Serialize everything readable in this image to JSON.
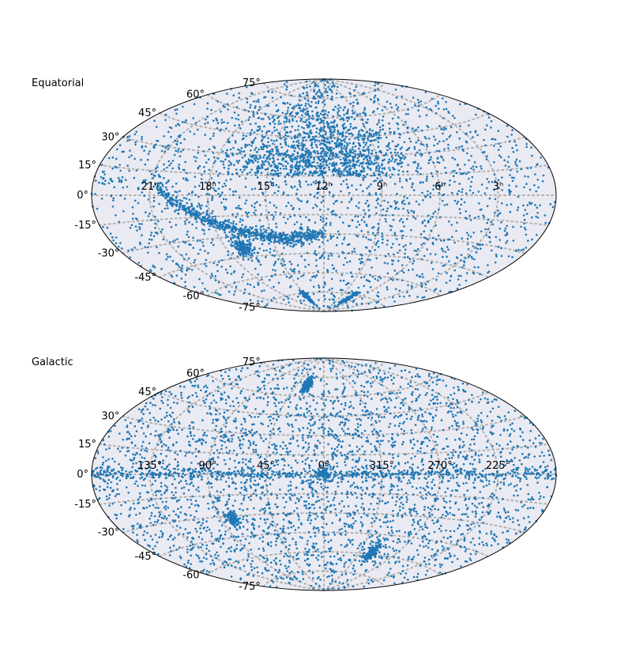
{
  "chart_data": [
    {
      "type": "scatter",
      "projection": "aitoff",
      "frame": "Equatorial",
      "grid": true,
      "ylim": [
        -90,
        90
      ],
      "lat_ticks": [
        -75,
        -60,
        -45,
        -30,
        -15,
        0,
        15,
        30,
        45,
        60,
        75
      ],
      "lat_tick_labels": [
        "-75°",
        "-60°",
        "-45°",
        "-30°",
        "-15°",
        "0°",
        "15°",
        "30°",
        "45°",
        "60°",
        "75°"
      ],
      "lon_ticks_deg": [
        -135,
        -90,
        -45,
        0,
        45,
        90,
        135
      ],
      "lon_tick_labels": [
        "21ʰ",
        "18ʰ",
        "15ʰ",
        "12ʰ",
        "9ʰ",
        "6ʰ",
        "3ʰ"
      ],
      "colors": {
        "points": "#1f77b4",
        "background": "#eaeaf2",
        "grid": "#b0b0b0"
      },
      "points_note": "several thousand points; uniform background plus concentrations (Galactic-plane arc, dense northern region)"
    },
    {
      "type": "scatter",
      "projection": "aitoff",
      "frame": "Galactic",
      "grid": true,
      "ylim": [
        -90,
        90
      ],
      "lat_ticks": [
        -75,
        -60,
        -45,
        -30,
        -15,
        0,
        15,
        30,
        45,
        60,
        75
      ],
      "lat_tick_labels": [
        "-75°",
        "-60°",
        "-45°",
        "-30°",
        "-15°",
        "0°",
        "15°",
        "30°",
        "45°",
        "60°",
        "75°"
      ],
      "lon_ticks_deg": [
        -135,
        -90,
        -45,
        0,
        45,
        90,
        135
      ],
      "lon_tick_labels": [
        "135°",
        "90°",
        "45°",
        "0°",
        "315°",
        "270°",
        "225°"
      ],
      "colors": {
        "points": "#1f77b4",
        "background": "#eaeaf2",
        "grid": "#b0b0b0"
      },
      "points_note": "several thousand points; uniform background plus concentrations (thin band along b=0, clusters)"
    }
  ]
}
